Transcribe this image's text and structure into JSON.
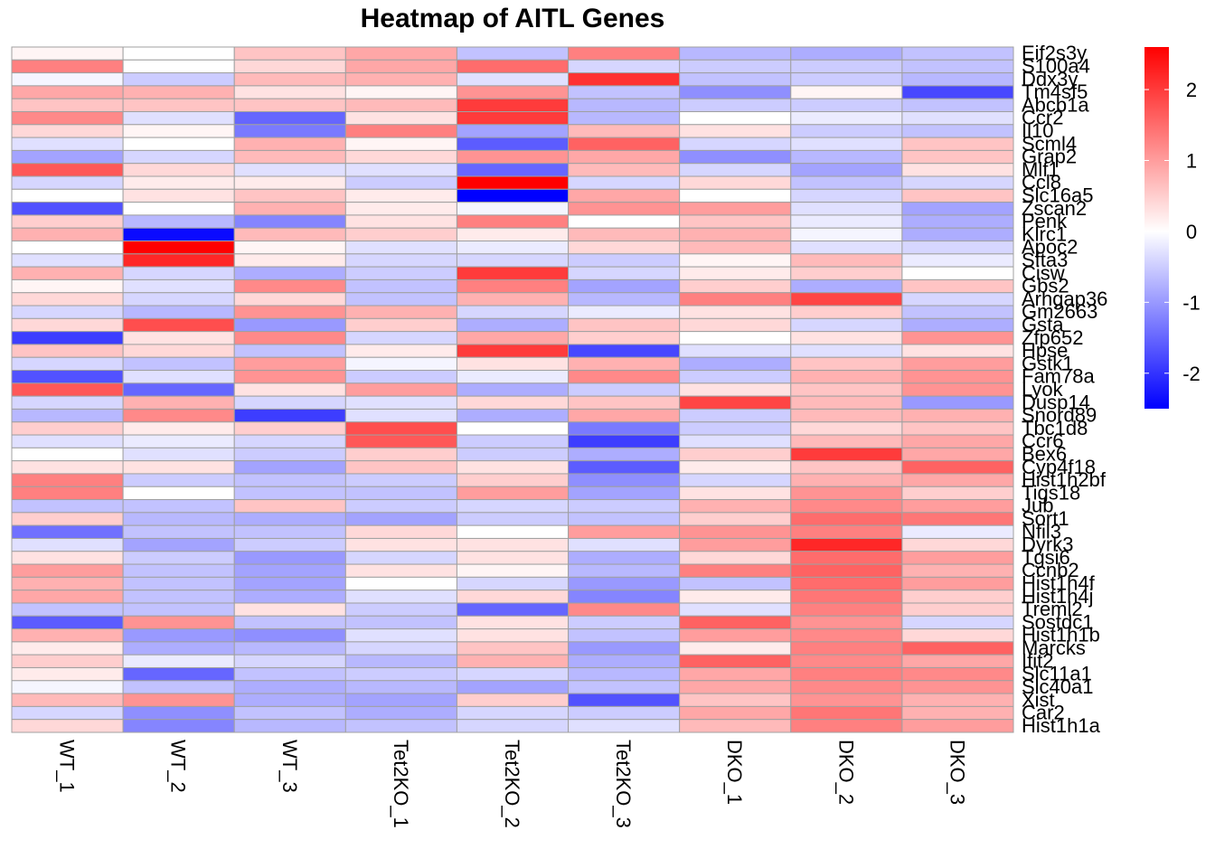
{
  "chart_data": {
    "type": "heatmap",
    "title": "Heatmap of AITL Genes",
    "columns": [
      "WT_1",
      "WT_2",
      "WT_3",
      "Tet2KO_1",
      "Tet2KO_2",
      "Tet2KO_3",
      "DKO_1",
      "DKO_2",
      "DKO_3"
    ],
    "rows": [
      "Eif2s3y",
      "S100a4",
      "Ddx3y",
      "Tm4sf5",
      "Abcb1a",
      "Ccr2",
      "Il10",
      "Scml4",
      "Grap2",
      "Mlf1",
      "Ccl8",
      "Slc16a5",
      "Zscan2",
      "Penk",
      "Klrc1",
      "Apoc2",
      "Sfta3",
      "Cisw",
      "Gbs2",
      "Arhgap36",
      "Gm2663",
      "Gsta",
      "Zfp652",
      "Hpse",
      "Gstk1",
      "Fam78a",
      "Lyok",
      "Dusp14",
      "Snord89",
      "Tbc1d8",
      "Ccr6",
      "Bex6",
      "Cyp4f18",
      "Hist1h2bf",
      "Tigs18",
      "Jub",
      "Sort1",
      "Nfil3",
      "Dyrk3",
      "Tgsi6",
      "Ccnb2",
      "Hist1h4f",
      "Hist1h4j",
      "Treml2",
      "Sostdc1",
      "Hist1h1b",
      "Marcks",
      "Ifit2",
      "Slc11a1",
      "Slc40a1",
      "Xist",
      "Car2",
      "Hist1h1a"
    ],
    "values": [
      [
        0.1,
        0.0,
        0.6,
        0.9,
        -0.6,
        1.3,
        -0.7,
        -0.8,
        -0.6
      ],
      [
        1.3,
        0.0,
        0.4,
        0.9,
        1.5,
        -0.4,
        -0.5,
        -0.5,
        -0.6
      ],
      [
        -0.1,
        -0.5,
        0.7,
        0.8,
        -0.3,
        2.1,
        -0.6,
        -0.5,
        -0.7
      ],
      [
        0.9,
        0.8,
        0.3,
        0.1,
        1.1,
        -0.6,
        -1.1,
        0.1,
        -1.8
      ],
      [
        0.6,
        0.6,
        0.6,
        0.7,
        2.0,
        -0.7,
        -0.5,
        -0.5,
        -0.6
      ],
      [
        1.2,
        -0.3,
        -1.5,
        0.3,
        2.0,
        -0.7,
        0.0,
        -0.2,
        -0.3
      ],
      [
        0.4,
        0.1,
        -1.3,
        1.3,
        -0.9,
        0.7,
        0.3,
        -0.5,
        -0.6
      ],
      [
        -0.3,
        0.0,
        0.8,
        0.1,
        -1.6,
        1.6,
        -0.4,
        -0.3,
        0.6
      ],
      [
        -0.9,
        -0.4,
        0.7,
        0.4,
        1.1,
        0.9,
        -1.1,
        -0.7,
        0.6
      ],
      [
        1.7,
        0.4,
        -0.3,
        -0.3,
        -1.5,
        0.7,
        -0.4,
        -0.9,
        0.3
      ],
      [
        -0.4,
        0.2,
        0.2,
        -0.5,
        2.6,
        -0.4,
        0.4,
        -0.6,
        -0.4
      ],
      [
        0.0,
        0.3,
        0.6,
        0.2,
        -2.5,
        0.9,
        0.0,
        -0.4,
        0.6
      ],
      [
        -1.7,
        0.0,
        0.8,
        0.2,
        -0.1,
        1.1,
        1.0,
        -0.3,
        -0.9
      ],
      [
        0.5,
        -0.7,
        -1.2,
        0.3,
        1.3,
        0.0,
        0.6,
        -0.2,
        -0.8
      ],
      [
        0.8,
        -2.4,
        0.7,
        0.5,
        0.2,
        0.7,
        0.8,
        -0.1,
        -0.8
      ],
      [
        0.0,
        2.6,
        0.1,
        -0.3,
        -0.2,
        0.4,
        0.7,
        -0.3,
        -0.4
      ],
      [
        -0.3,
        2.2,
        0.2,
        -0.4,
        -0.4,
        -0.5,
        0.1,
        0.7,
        -0.2
      ],
      [
        0.8,
        -0.4,
        -0.8,
        -0.5,
        2.0,
        -0.4,
        0.2,
        0.5,
        0.0
      ],
      [
        0.1,
        -0.3,
        1.2,
        -0.6,
        1.3,
        -0.9,
        0.5,
        -0.8,
        0.6
      ],
      [
        0.4,
        -0.4,
        0.4,
        -0.6,
        0.8,
        -0.7,
        1.3,
        1.9,
        -0.4
      ],
      [
        -0.4,
        -0.7,
        1.1,
        0.8,
        -0.4,
        -0.2,
        0.3,
        0.5,
        -0.6
      ],
      [
        0.4,
        1.8,
        -1.0,
        0.5,
        -0.8,
        0.6,
        0.4,
        -0.4,
        -0.8
      ],
      [
        -1.9,
        0.3,
        1.2,
        -0.4,
        0.9,
        0.5,
        0.0,
        0.3,
        1.1
      ],
      [
        0.6,
        0.4,
        -0.6,
        0.2,
        2.0,
        -1.8,
        -0.3,
        -0.3,
        0.3
      ],
      [
        -0.4,
        -0.6,
        1.0,
        -0.1,
        0.3,
        0.8,
        -0.8,
        0.6,
        1.0
      ],
      [
        -1.7,
        -0.3,
        1.1,
        -0.5,
        -0.2,
        1.2,
        -0.5,
        0.8,
        1.1
      ],
      [
        1.7,
        -1.5,
        0.3,
        1.0,
        -0.8,
        -0.5,
        0.3,
        0.6,
        1.1
      ],
      [
        -0.4,
        0.8,
        -0.4,
        -0.3,
        0.4,
        0.6,
        1.9,
        0.7,
        -1.0
      ],
      [
        -0.7,
        1.2,
        -1.9,
        -0.3,
        -0.8,
        0.9,
        -0.5,
        0.7,
        0.8
      ],
      [
        0.5,
        0.2,
        0.5,
        1.8,
        0.0,
        -1.3,
        -0.5,
        0.4,
        0.6
      ],
      [
        -0.3,
        -0.2,
        -0.4,
        1.7,
        -0.5,
        -1.9,
        -0.3,
        0.7,
        0.9
      ],
      [
        0.0,
        -0.3,
        -0.5,
        0.5,
        -0.5,
        -0.8,
        0.5,
        2.0,
        0.9
      ],
      [
        0.3,
        0.3,
        -0.9,
        0.6,
        0.3,
        -1.6,
        0.2,
        0.6,
        1.6
      ],
      [
        1.3,
        -0.5,
        -0.6,
        -0.5,
        0.5,
        -1.1,
        -0.4,
        0.8,
        0.9
      ],
      [
        1.3,
        0.0,
        -0.6,
        -0.6,
        1.0,
        -0.9,
        0.3,
        1.1,
        0.5
      ],
      [
        -0.6,
        -0.6,
        0.6,
        -0.5,
        -0.4,
        -0.5,
        0.8,
        1.2,
        1.0
      ],
      [
        0.5,
        -0.7,
        -0.8,
        -0.9,
        -0.5,
        -0.6,
        0.5,
        1.5,
        1.4
      ],
      [
        -1.4,
        -0.6,
        -0.6,
        0.4,
        0.0,
        1.0,
        1.1,
        1.3,
        -0.2
      ],
      [
        -0.3,
        -0.9,
        -0.5,
        0.3,
        0.3,
        -0.3,
        1.0,
        2.2,
        0.4
      ],
      [
        0.3,
        -0.5,
        -1.0,
        -0.4,
        0.3,
        -0.8,
        0.4,
        1.5,
        1.0
      ],
      [
        1.0,
        -0.6,
        -0.9,
        0.3,
        0.1,
        -0.7,
        1.3,
        1.6,
        0.8
      ],
      [
        0.8,
        -0.6,
        -0.9,
        0.0,
        -0.4,
        -1.0,
        -0.6,
        1.5,
        1.0
      ],
      [
        0.9,
        -0.6,
        -0.8,
        -0.3,
        0.4,
        -1.2,
        0.2,
        1.4,
        0.5
      ],
      [
        -0.6,
        -0.6,
        0.3,
        -0.5,
        -1.5,
        1.2,
        -0.3,
        1.3,
        0.5
      ],
      [
        -1.6,
        1.1,
        -0.6,
        -0.6,
        0.3,
        -0.5,
        1.6,
        1.1,
        -0.4
      ],
      [
        0.8,
        -1.0,
        -1.1,
        -0.3,
        0.3,
        -0.6,
        1.0,
        1.2,
        0.4
      ],
      [
        0.2,
        -0.8,
        -0.7,
        -0.4,
        0.6,
        -1.0,
        0.2,
        1.3,
        1.6
      ],
      [
        0.5,
        -0.2,
        -0.4,
        -0.7,
        0.8,
        -0.8,
        1.6,
        1.2,
        0.9
      ],
      [
        0.2,
        -1.5,
        -0.6,
        -0.5,
        -0.4,
        -0.7,
        0.9,
        1.3,
        1.2
      ],
      [
        -0.1,
        -0.6,
        -0.8,
        -0.7,
        -0.9,
        -0.6,
        0.9,
        1.2,
        1.1
      ],
      [
        0.7,
        1.1,
        -0.8,
        -0.9,
        0.5,
        -1.7,
        0.6,
        1.1,
        0.8
      ],
      [
        -0.4,
        -1.1,
        -0.6,
        -0.8,
        -0.4,
        -0.5,
        0.9,
        1.4,
        0.8
      ],
      [
        0.4,
        -1.2,
        -0.7,
        -0.6,
        -0.4,
        -0.3,
        0.7,
        1.3,
        1.0
      ]
    ],
    "colorscale": {
      "low": "#0000ff",
      "mid": "#ffffff",
      "high": "#ff0000",
      "min": -2.5,
      "max": 2.6
    },
    "legend_ticks": [
      2,
      1,
      0,
      -1,
      -2
    ],
    "legend_tick_labels": [
      "2",
      "1",
      "0",
      "-1",
      "-2"
    ],
    "legend_position": "right",
    "cell_border_color": "#a0a0a0"
  }
}
